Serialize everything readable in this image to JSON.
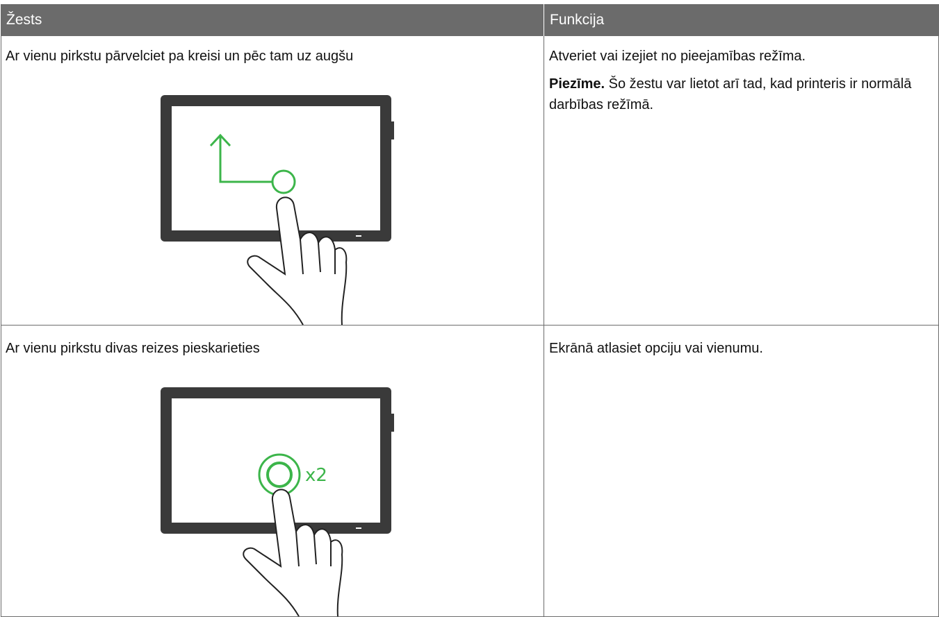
{
  "table": {
    "headers": [
      "Žests",
      "Funkcija"
    ],
    "rows": [
      {
        "gesture": "Ar vienu pirkstu pārvelciet pa kreisi un pēc tam uz augšu",
        "function": "Atveriet vai izejiet no pieejamības režīma.",
        "note_label": "Piezīme.",
        "note": "Šo žestu var lietot arī tad, kad printeris ir normālā darbības režīmā."
      },
      {
        "gesture": "Ar vienu pirkstu divas reizes pieskarieties",
        "function": "Ekrānā atlasiet opciju vai vienumu.",
        "tap_label": "x2"
      }
    ]
  }
}
